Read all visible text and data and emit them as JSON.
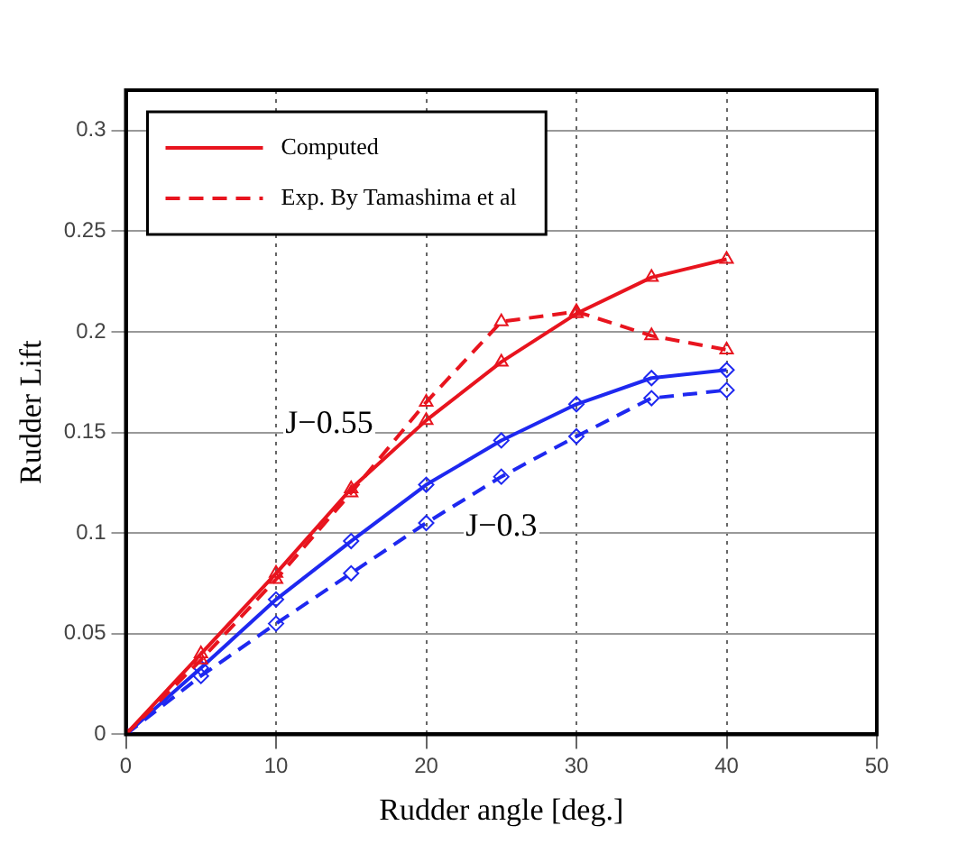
{
  "chart_data": {
    "type": "line",
    "xlabel": "Rudder angle [deg.]",
    "ylabel": "Rudder Lift",
    "x": [
      0,
      5,
      10,
      15,
      20,
      25,
      30,
      35,
      40
    ],
    "xlim": [
      0,
      50
    ],
    "xticks": [
      0,
      10,
      20,
      30,
      40,
      50
    ],
    "ylim": [
      0,
      0.32
    ],
    "yticks": [
      0,
      0.05,
      0.1,
      0.15,
      0.2,
      0.25,
      0.3
    ],
    "grid": true,
    "legend": "top left",
    "series": [
      {
        "name": "Computed",
        "color": "#e8141e",
        "marker": "triangle",
        "line_style": "solid",
        "values": [
          0,
          0.04,
          0.08,
          0.122,
          0.156,
          0.185,
          0.209,
          0.227,
          0.236
        ]
      },
      {
        "name": "Exp. By Tamashima et al",
        "color": "#e8141e",
        "marker": "triangle",
        "line_style": "dashed",
        "values": [
          0,
          0.037,
          0.077,
          0.12,
          0.165,
          0.205,
          0.21,
          0.198,
          0.191
        ]
      },
      {
        "color": "#1e28f0",
        "marker": "diamond",
        "line_style": "solid",
        "values": [
          0,
          0.033,
          0.067,
          0.096,
          0.124,
          0.146,
          0.164,
          0.177,
          0.181
        ]
      },
      {
        "color": "#1e28f0",
        "marker": "diamond",
        "line_style": "dashed",
        "values": [
          0,
          0.029,
          0.055,
          0.08,
          0.105,
          0.128,
          0.148,
          0.167,
          0.171
        ]
      }
    ],
    "annotations": [
      "J−0.55",
      "J−0.3"
    ]
  }
}
